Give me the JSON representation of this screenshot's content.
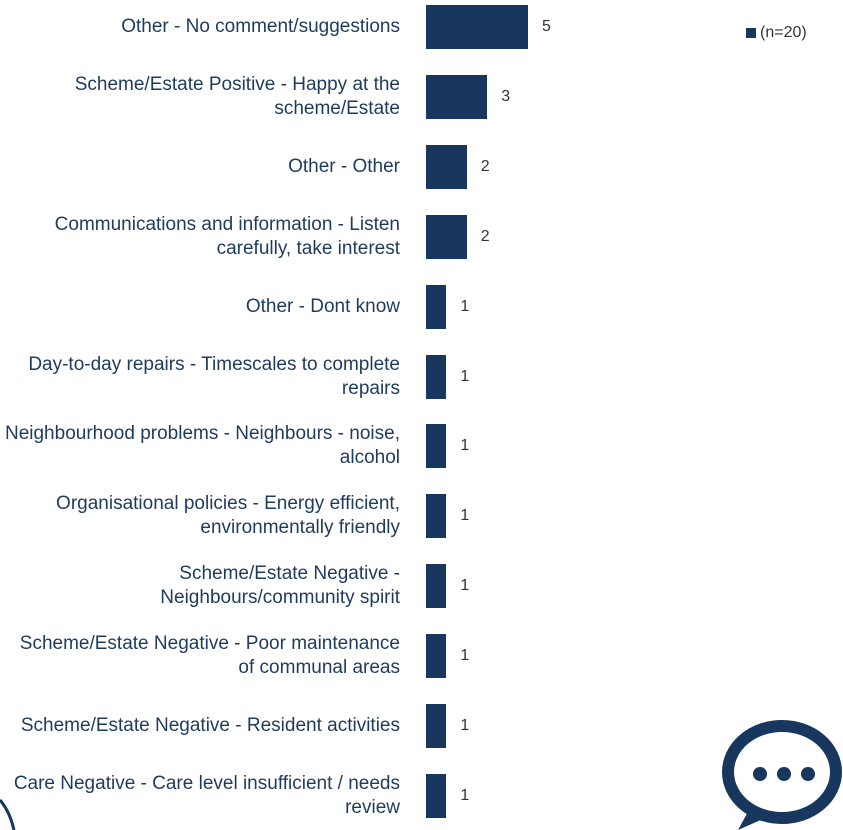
{
  "chart_data": {
    "type": "bar",
    "orientation": "horizontal",
    "categories": [
      "Other - No comment/suggestions",
      "Scheme/Estate Positive - Happy at the scheme/Estate",
      "Other - Other",
      "Communications and information - Listen carefully, take interest",
      "Other - Dont know",
      "Day-to-day repairs - Timescales to complete repairs",
      "Neighbourhood problems - Neighbours - noise, alcohol",
      "Organisational policies - Energy efficient, environmentally friendly",
      "Scheme/Estate Negative - Neighbours/community spirit",
      "Scheme/Estate Negative - Poor maintenance of communal areas",
      "Scheme/Estate Negative - Resident activities",
      "Care Negative - Care level insufficient / needs review"
    ],
    "series": [
      {
        "name": "(n=20)",
        "color": "#17375e",
        "values": [
          5,
          3,
          2,
          2,
          1,
          1,
          1,
          1,
          1,
          1,
          1,
          1
        ]
      }
    ],
    "legend": "top-right"
  }
}
